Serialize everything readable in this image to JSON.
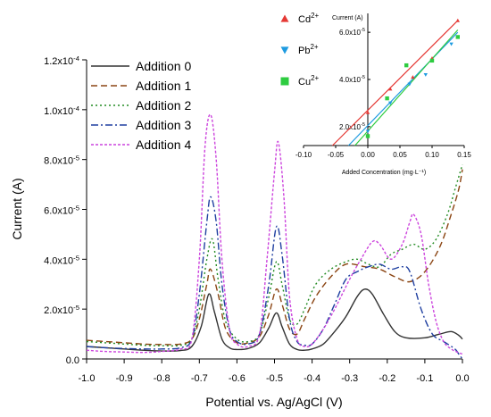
{
  "chart_data": [
    {
      "type": "line",
      "xlabel": "Potential vs. Ag/AgCl (V)",
      "ylabel": "Current (A)",
      "xlim": [
        -1.0,
        0.0
      ],
      "ylim": [
        0,
        0.00012
      ],
      "x_ticks": [
        {
          "value": -1.0,
          "label": "-1.0"
        },
        {
          "value": -0.9,
          "label": "-0.9"
        },
        {
          "value": -0.8,
          "label": "-0.8"
        },
        {
          "value": -0.7,
          "label": "-0.7"
        },
        {
          "value": -0.6,
          "label": "-0.6"
        },
        {
          "value": -0.5,
          "label": "-0.5"
        },
        {
          "value": -0.4,
          "label": "-0.4"
        },
        {
          "value": -0.3,
          "label": "-0.3"
        },
        {
          "value": -0.2,
          "label": "-0.2"
        },
        {
          "value": -0.1,
          "label": "-0.1"
        },
        {
          "value": 0.0,
          "label": "0.0"
        }
      ],
      "y_ticks": [
        {
          "value": 0,
          "label": "0.0"
        },
        {
          "value": 2e-05,
          "mant": "2.0x10",
          "exp": "-5"
        },
        {
          "value": 4e-05,
          "mant": "4.0x10",
          "exp": "-5"
        },
        {
          "value": 6e-05,
          "mant": "6.0x10",
          "exp": "-5"
        },
        {
          "value": 8e-05,
          "mant": "8.0x10",
          "exp": "-5"
        },
        {
          "value": 0.0001,
          "mant": "1.0x10",
          "exp": "-4"
        },
        {
          "value": 0.00012,
          "mant": "1.2x10",
          "exp": "-4"
        }
      ],
      "grid": false,
      "legend": "top-left",
      "series": [
        {
          "name": "Addition 0",
          "color": "#333333",
          "dash": "solid",
          "points": [
            [
              -1.0,
              5e-06
            ],
            [
              -0.95,
              4.5e-06
            ],
            [
              -0.9,
              4e-06
            ],
            [
              -0.85,
              3.5e-06
            ],
            [
              -0.8,
              3.2e-06
            ],
            [
              -0.75,
              3.4e-06
            ],
            [
              -0.72,
              5e-06
            ],
            [
              -0.695,
              1.3e-05
            ],
            [
              -0.675,
              2.6e-05
            ],
            [
              -0.66,
              1.9e-05
            ],
            [
              -0.64,
              8e-06
            ],
            [
              -0.62,
              4.5e-06
            ],
            [
              -0.6,
              3.8e-06
            ],
            [
              -0.57,
              4.2e-06
            ],
            [
              -0.54,
              6.5e-06
            ],
            [
              -0.515,
              1.25e-05
            ],
            [
              -0.495,
              1.85e-05
            ],
            [
              -0.48,
              1.3e-05
            ],
            [
              -0.46,
              6e-06
            ],
            [
              -0.44,
              3.8e-06
            ],
            [
              -0.42,
              3.5e-06
            ],
            [
              -0.4,
              4e-06
            ],
            [
              -0.37,
              6e-06
            ],
            [
              -0.34,
              1.1e-05
            ],
            [
              -0.31,
              1.7e-05
            ],
            [
              -0.28,
              2.5e-05
            ],
            [
              -0.26,
              2.8e-05
            ],
            [
              -0.24,
              2.6e-05
            ],
            [
              -0.21,
              1.8e-05
            ],
            [
              -0.18,
              1.1e-05
            ],
            [
              -0.15,
              8.5e-06
            ],
            [
              -0.1,
              8.5e-06
            ],
            [
              -0.06,
              1e-05
            ],
            [
              -0.03,
              1.1e-05
            ],
            [
              -0.01,
              9.5e-06
            ],
            [
              0.0,
              8e-06
            ]
          ]
        },
        {
          "name": "Addition 1",
          "color": "#8B4513",
          "dash": "7,4",
          "points": [
            [
              -1.0,
              7.5e-06
            ],
            [
              -0.95,
              7e-06
            ],
            [
              -0.9,
              6.5e-06
            ],
            [
              -0.85,
              6e-06
            ],
            [
              -0.8,
              5.8e-06
            ],
            [
              -0.75,
              6e-06
            ],
            [
              -0.72,
              8e-06
            ],
            [
              -0.7,
              1.6e-05
            ],
            [
              -0.68,
              3e-05
            ],
            [
              -0.67,
              3.6e-05
            ],
            [
              -0.65,
              2.6e-05
            ],
            [
              -0.63,
              1.2e-05
            ],
            [
              -0.6,
              6.5e-06
            ],
            [
              -0.57,
              6.5e-06
            ],
            [
              -0.54,
              9e-06
            ],
            [
              -0.515,
              1.8e-05
            ],
            [
              -0.495,
              2.8e-05
            ],
            [
              -0.48,
              2.2e-05
            ],
            [
              -0.46,
              1.2e-05
            ],
            [
              -0.44,
              1e-05
            ],
            [
              -0.42,
              1.6e-05
            ],
            [
              -0.39,
              2.5e-05
            ],
            [
              -0.35,
              3.3e-05
            ],
            [
              -0.31,
              3.8e-05
            ],
            [
              -0.26,
              3.7e-05
            ],
            [
              -0.22,
              3.6e-05
            ],
            [
              -0.18,
              3.3e-05
            ],
            [
              -0.14,
              3.1e-05
            ],
            [
              -0.1,
              3.5e-05
            ],
            [
              -0.06,
              4.5e-05
            ],
            [
              -0.03,
              5.8e-05
            ],
            [
              -0.01,
              6.8e-05
            ],
            [
              0.0,
              7.6e-05
            ]
          ]
        },
        {
          "name": "Addition 2",
          "color": "#228B22",
          "dash": "2,3",
          "points": [
            [
              -1.0,
              7e-06
            ],
            [
              -0.95,
              6.5e-06
            ],
            [
              -0.9,
              6e-06
            ],
            [
              -0.85,
              5.5e-06
            ],
            [
              -0.8,
              5.3e-06
            ],
            [
              -0.75,
              5.5e-06
            ],
            [
              -0.72,
              8e-06
            ],
            [
              -0.7,
              2e-05
            ],
            [
              -0.68,
              4e-05
            ],
            [
              -0.665,
              4.8e-05
            ],
            [
              -0.65,
              3.2e-05
            ],
            [
              -0.63,
              1.5e-05
            ],
            [
              -0.6,
              8e-06
            ],
            [
              -0.57,
              7e-06
            ],
            [
              -0.54,
              1e-05
            ],
            [
              -0.515,
              2.5e-05
            ],
            [
              -0.495,
              3.9e-05
            ],
            [
              -0.48,
              3e-05
            ],
            [
              -0.46,
              1.6e-05
            ],
            [
              -0.44,
              1.4e-05
            ],
            [
              -0.42,
              2e-05
            ],
            [
              -0.39,
              3e-05
            ],
            [
              -0.35,
              3.6e-05
            ],
            [
              -0.31,
              3.9e-05
            ],
            [
              -0.28,
              4e-05
            ],
            [
              -0.25,
              3.8e-05
            ],
            [
              -0.22,
              3.7e-05
            ],
            [
              -0.19,
              4.2e-05
            ],
            [
              -0.16,
              4.4e-05
            ],
            [
              -0.13,
              4.6e-05
            ],
            [
              -0.1,
              4.4e-05
            ],
            [
              -0.07,
              4.8e-05
            ],
            [
              -0.04,
              5.8e-05
            ],
            [
              -0.02,
              6.8e-05
            ],
            [
              0.0,
              7.8e-05
            ]
          ]
        },
        {
          "name": "Addition 3",
          "color": "#1F3FA0",
          "dash": "8,3,2,3",
          "points": [
            [
              -1.0,
              5e-06
            ],
            [
              -0.95,
              4.5e-06
            ],
            [
              -0.9,
              4.2e-06
            ],
            [
              -0.85,
              4e-06
            ],
            [
              -0.8,
              4e-06
            ],
            [
              -0.75,
              4.5e-06
            ],
            [
              -0.72,
              8e-06
            ],
            [
              -0.7,
              2.6e-05
            ],
            [
              -0.68,
              5.5e-05
            ],
            [
              -0.67,
              6.5e-05
            ],
            [
              -0.655,
              5.5e-05
            ],
            [
              -0.64,
              3e-05
            ],
            [
              -0.62,
              1.2e-05
            ],
            [
              -0.6,
              7e-06
            ],
            [
              -0.57,
              6e-06
            ],
            [
              -0.54,
              1e-05
            ],
            [
              -0.515,
              3e-05
            ],
            [
              -0.495,
              5.3e-05
            ],
            [
              -0.48,
              4.2e-05
            ],
            [
              -0.46,
              1.6e-05
            ],
            [
              -0.44,
              7e-06
            ],
            [
              -0.42,
              5.5e-06
            ],
            [
              -0.4,
              6e-06
            ],
            [
              -0.37,
              1.2e-05
            ],
            [
              -0.34,
              2.2e-05
            ],
            [
              -0.31,
              3.2e-05
            ],
            [
              -0.28,
              3.5e-05
            ],
            [
              -0.25,
              3.7e-05
            ],
            [
              -0.22,
              3.8e-05
            ],
            [
              -0.19,
              3.6e-05
            ],
            [
              -0.16,
              3.7e-05
            ],
            [
              -0.14,
              3.5e-05
            ],
            [
              -0.11,
              2e-05
            ],
            [
              -0.08,
              1e-05
            ],
            [
              -0.05,
              7e-06
            ],
            [
              -0.02,
              4e-06
            ],
            [
              -0.01,
              2e-06
            ],
            [
              0.0,
              0.0
            ]
          ]
        },
        {
          "name": "Addition 4",
          "color": "#CC44DD",
          "dash": "3,2",
          "points": [
            [
              -1.0,
              3.5e-06
            ],
            [
              -0.95,
              3e-06
            ],
            [
              -0.9,
              2.8e-06
            ],
            [
              -0.85,
              2.6e-06
            ],
            [
              -0.8,
              3e-06
            ],
            [
              -0.75,
              4e-06
            ],
            [
              -0.72,
              8e-06
            ],
            [
              -0.7,
              4e-05
            ],
            [
              -0.685,
              8.5e-05
            ],
            [
              -0.67,
              9.8e-05
            ],
            [
              -0.655,
              8e-05
            ],
            [
              -0.64,
              4e-05
            ],
            [
              -0.62,
              1.2e-05
            ],
            [
              -0.6,
              6e-06
            ],
            [
              -0.57,
              5e-06
            ],
            [
              -0.54,
              1e-05
            ],
            [
              -0.52,
              4e-05
            ],
            [
              -0.5,
              7.5e-05
            ],
            [
              -0.49,
              8.7e-05
            ],
            [
              -0.475,
              6.5e-05
            ],
            [
              -0.46,
              2.5e-05
            ],
            [
              -0.44,
              8e-06
            ],
            [
              -0.42,
              5e-06
            ],
            [
              -0.4,
              6e-06
            ],
            [
              -0.37,
              1.2e-05
            ],
            [
              -0.34,
              2e-05
            ],
            [
              -0.3,
              3.2e-05
            ],
            [
              -0.27,
              4e-05
            ],
            [
              -0.24,
              4.7e-05
            ],
            [
              -0.22,
              4.6e-05
            ],
            [
              -0.19,
              4e-05
            ],
            [
              -0.16,
              4.6e-05
            ],
            [
              -0.14,
              5.5e-05
            ],
            [
              -0.13,
              5.8e-05
            ],
            [
              -0.11,
              5e-05
            ],
            [
              -0.09,
              3e-05
            ],
            [
              -0.07,
              1.5e-05
            ],
            [
              -0.05,
              7e-06
            ],
            [
              -0.03,
              4e-06
            ],
            [
              -0.01,
              2.5e-06
            ],
            [
              0.0,
              2e-06
            ]
          ]
        }
      ]
    },
    {
      "type": "scatter",
      "title": "Current (A)",
      "xlabel": "Added Concentration (mg·L⁻¹)",
      "xlim": [
        -0.1,
        0.15
      ],
      "ylim": [
        1.2e-05,
        6.8e-05
      ],
      "x_ticks": [
        {
          "value": -0.1,
          "label": "-0.10"
        },
        {
          "value": -0.05,
          "label": "-0.05"
        },
        {
          "value": 0.0,
          "label": "0.00"
        },
        {
          "value": 0.05,
          "label": "0.05"
        },
        {
          "value": 0.1,
          "label": "0.10"
        },
        {
          "value": 0.15,
          "label": "0.15"
        }
      ],
      "y_ticks": [
        {
          "value": 2e-05,
          "mant": "2.0x10",
          "exp": "-5"
        },
        {
          "value": 4e-05,
          "mant": "4.0x10",
          "exp": "-5"
        },
        {
          "value": 6e-05,
          "mant": "6.0x10",
          "exp": "-5"
        }
      ],
      "legend": "left",
      "series": [
        {
          "name": "Cd",
          "sup": "2+",
          "color": "#E53935",
          "marker": "triangle-up",
          "points": [
            [
              0.0,
              2.6e-05
            ],
            [
              0.035,
              3.6e-05
            ],
            [
              0.07,
              4.1e-05
            ],
            [
              0.1,
              4.9e-05
            ],
            [
              0.14,
              6.5e-05
            ]
          ],
          "fit": [
            [
              -0.055,
              1.2e-05
            ],
            [
              0.14,
              6.5e-05
            ]
          ]
        },
        {
          "name": "Pb",
          "sup": "2+",
          "color": "#1E9BE0",
          "marker": "triangle-down",
          "points": [
            [
              0.0,
              1.8e-05
            ],
            [
              0.035,
              3e-05
            ],
            [
              0.065,
              3.8e-05
            ],
            [
              0.09,
              4.2e-05
            ],
            [
              0.13,
              5.5e-05
            ]
          ],
          "fit": [
            [
              -0.03,
              1.2e-05
            ],
            [
              0.14,
              6e-05
            ]
          ]
        },
        {
          "name": "Cu",
          "sup": "2+",
          "color": "#2ECC40",
          "marker": "square",
          "points": [
            [
              0.0,
              1.6e-05
            ],
            [
              0.03,
              3.2e-05
            ],
            [
              0.06,
              4.6e-05
            ],
            [
              0.1,
              4.8e-05
            ],
            [
              0.14,
              5.8e-05
            ]
          ],
          "fit": [
            [
              -0.02,
              1.2e-05
            ],
            [
              0.14,
              6.1e-05
            ]
          ]
        }
      ]
    }
  ]
}
